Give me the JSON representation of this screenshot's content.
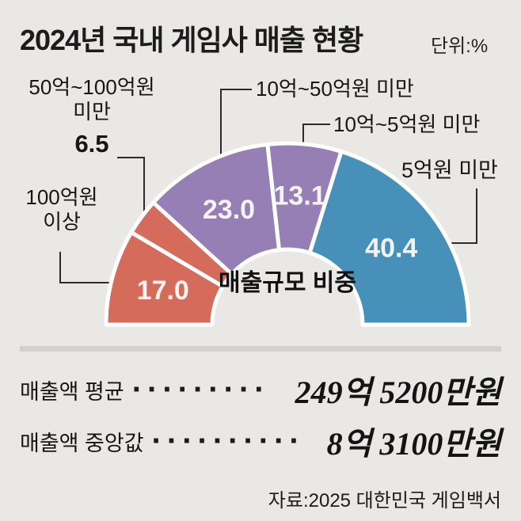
{
  "header": {
    "title": "2024년 국내 게임사 매출 현황",
    "unit": "단위:%"
  },
  "chart_data": {
    "type": "pie",
    "subtype": "half-donut",
    "title": "2024년 국내 게임사 매출 현황",
    "unit": "%",
    "center_label": "매출규모 비중",
    "categories": [
      "100억원 이상",
      "50억~100억원 미만",
      "10억~50억원 미만",
      "10억~5억원 미만",
      "5억원 미만"
    ],
    "values": [
      17.0,
      6.5,
      23.0,
      13.1,
      40.4
    ],
    "value_labels": [
      "17.0",
      "6.5",
      "23.0",
      "13.1",
      "40.4"
    ],
    "value_inside": [
      true,
      false,
      true,
      true,
      true
    ],
    "colors": [
      "#d56b5b",
      "#d56b5b",
      "#957fb4",
      "#957fb4",
      "#4790ba"
    ],
    "start_angle_deg": 180,
    "end_angle_deg": 0,
    "legend_position": "callouts"
  },
  "annotations": {
    "a50_100": {
      "line1": "50억~100억원",
      "line2": "미만",
      "value": "6.5"
    },
    "a100plus": {
      "line1": "100억원",
      "line2": "이상"
    },
    "a10_50": {
      "text": "10억~50억원 미만"
    },
    "a10_5": {
      "text": "10억~5억원 미만"
    },
    "a5under": {
      "text": "5억원 미만"
    },
    "center": {
      "line1": "매출규모",
      "line2": "비중"
    }
  },
  "stats": {
    "rows": [
      {
        "label": "매출액 평균",
        "dots": "·········",
        "value": "249억 5200만원"
      },
      {
        "label": "매출액 중앙값",
        "dots": "··········",
        "value": "8억 3100만원"
      }
    ],
    "source": "자료:2025 대한민국 게임백서"
  },
  "colors": {
    "background": "#e9e8e5",
    "divider": "#d2d1ce",
    "leader_line": "#2b2b2b",
    "segment_gap": "#ffffff",
    "value_text": "#f4f3f1",
    "text": "#1a1a1a"
  }
}
